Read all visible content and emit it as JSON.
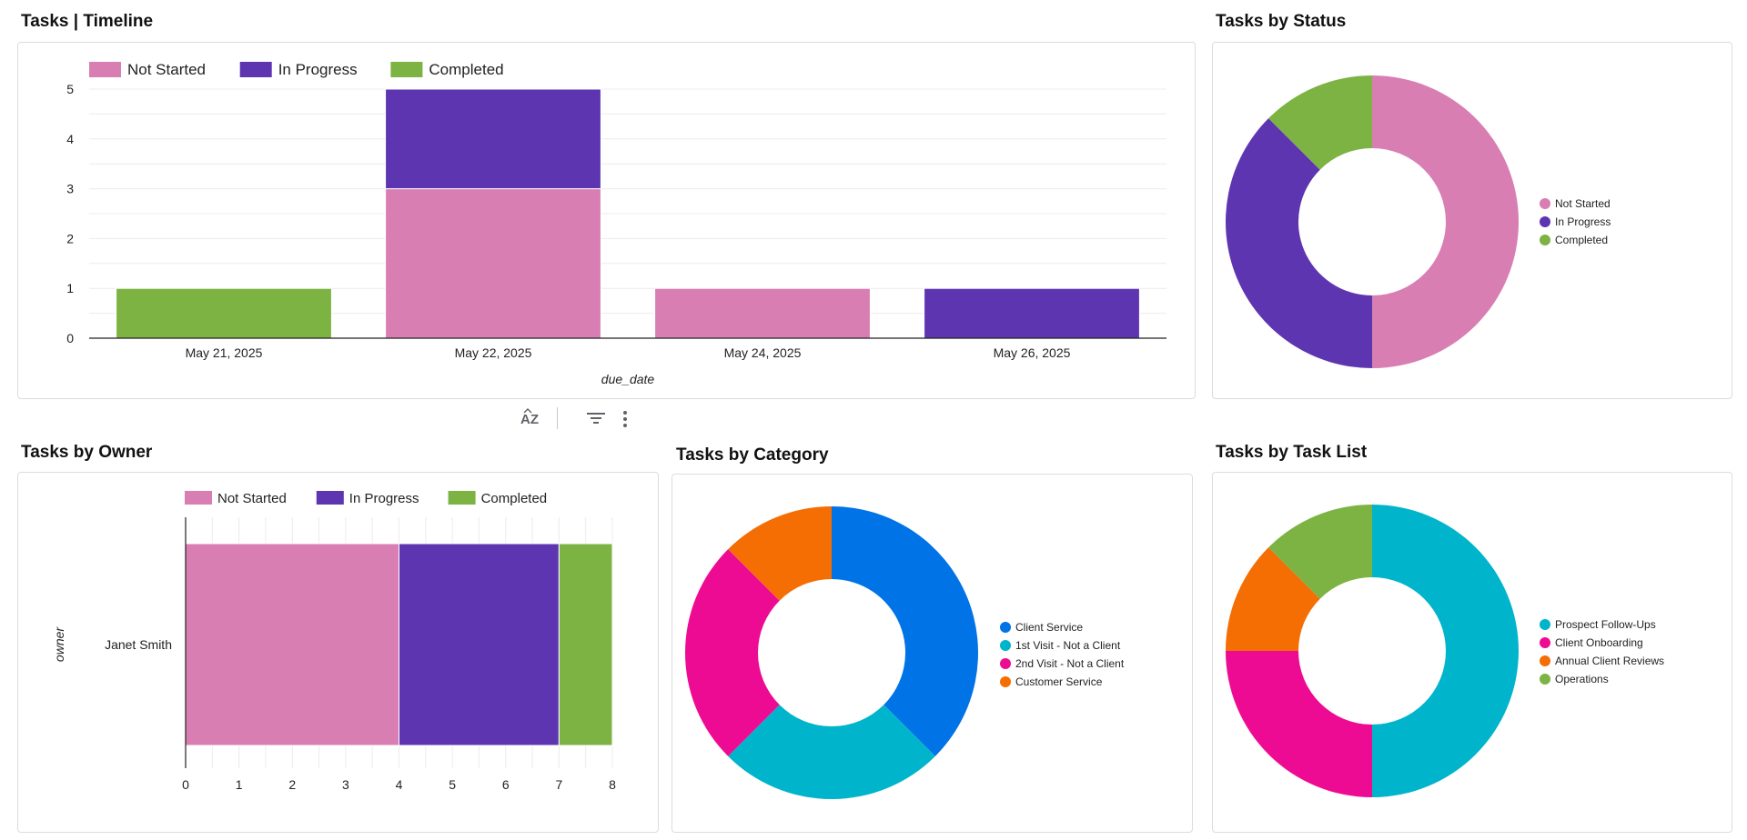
{
  "colors": {
    "not_started": "#d87eb2",
    "in_progress": "#5e35b1",
    "completed": "#7cb342",
    "client_service": "#0073e6",
    "first_visit": "#00b4cc",
    "second_visit": "#ee0b93",
    "customer_service": "#f46e04",
    "prospect": "#00b4cc",
    "onboarding": "#ee0b93",
    "annual": "#f46e04",
    "operations": "#7cb342"
  },
  "toolbar": {
    "sort_icon": "sort-az-icon",
    "filter_icon": "filter-icon",
    "more_icon": "more-vert-icon"
  },
  "panels": {
    "timeline": {
      "title": "Tasks | Timeline"
    },
    "status": {
      "title": "Tasks by Status"
    },
    "owner": {
      "title": "Tasks by Owner"
    },
    "category": {
      "title": "Tasks by Category"
    },
    "tasklist": {
      "title": "Tasks by Task List"
    }
  },
  "chart_data": [
    {
      "id": "timeline",
      "type": "bar",
      "stacked": true,
      "orientation": "vertical",
      "title": "Tasks | Timeline",
      "xlabel": "due_date",
      "ylabel": "",
      "categories": [
        "May 21, 2025",
        "May 22, 2025",
        "May 24, 2025",
        "May 26, 2025"
      ],
      "series": [
        {
          "name": "Not Started",
          "color": "#d87eb2",
          "values": [
            0,
            3,
            1,
            0
          ]
        },
        {
          "name": "In Progress",
          "color": "#5e35b1",
          "values": [
            0,
            2,
            0,
            1
          ]
        },
        {
          "name": "Completed",
          "color": "#7cb342",
          "values": [
            1,
            0,
            0,
            0
          ]
        }
      ],
      "ylim": [
        0,
        5
      ],
      "yticks": [
        "0",
        "1",
        "2",
        "3",
        "4",
        "5"
      ],
      "legend": "top-left",
      "grid": true
    },
    {
      "id": "status",
      "type": "pie",
      "donut": true,
      "title": "Tasks by Status",
      "slices": [
        {
          "label": "Not Started",
          "value": 4,
          "color": "#d87eb2"
        },
        {
          "label": "In Progress",
          "value": 3,
          "color": "#5e35b1"
        },
        {
          "label": "Completed",
          "value": 1,
          "color": "#7cb342"
        }
      ],
      "legend": "right"
    },
    {
      "id": "owner",
      "type": "bar",
      "stacked": true,
      "orientation": "horizontal",
      "title": "Tasks by Owner",
      "ylabel": "owner",
      "xlabel": "",
      "categories": [
        "Janet Smith"
      ],
      "series": [
        {
          "name": "Not Started",
          "color": "#d87eb2",
          "values": [
            4
          ]
        },
        {
          "name": "In Progress",
          "color": "#5e35b1",
          "values": [
            3
          ]
        },
        {
          "name": "Completed",
          "color": "#7cb342",
          "values": [
            1
          ]
        }
      ],
      "xlim": [
        0,
        8
      ],
      "xticks": [
        "0",
        "1",
        "2",
        "3",
        "4",
        "5",
        "6",
        "7",
        "8"
      ],
      "legend": "top",
      "grid": true
    },
    {
      "id": "category",
      "type": "pie",
      "donut": true,
      "title": "Tasks by Category",
      "slices": [
        {
          "label": "Client Service",
          "value": 3,
          "color": "#0073e6"
        },
        {
          "label": "1st Visit - Not a Client",
          "value": 2,
          "color": "#00b4cc"
        },
        {
          "label": "2nd Visit - Not a Client",
          "value": 2,
          "color": "#ee0b93"
        },
        {
          "label": "Customer Service",
          "value": 1,
          "color": "#f46e04"
        }
      ],
      "legend": "right"
    },
    {
      "id": "tasklist",
      "type": "pie",
      "donut": true,
      "title": "Tasks by Task List",
      "slices": [
        {
          "label": "Prospect Follow-Ups",
          "value": 4,
          "color": "#00b4cc"
        },
        {
          "label": "Client Onboarding",
          "value": 2,
          "color": "#ee0b93"
        },
        {
          "label": "Annual Client Reviews",
          "value": 1,
          "color": "#f46e04"
        },
        {
          "label": "Operations",
          "value": 1,
          "color": "#7cb342"
        }
      ],
      "legend": "right"
    }
  ]
}
